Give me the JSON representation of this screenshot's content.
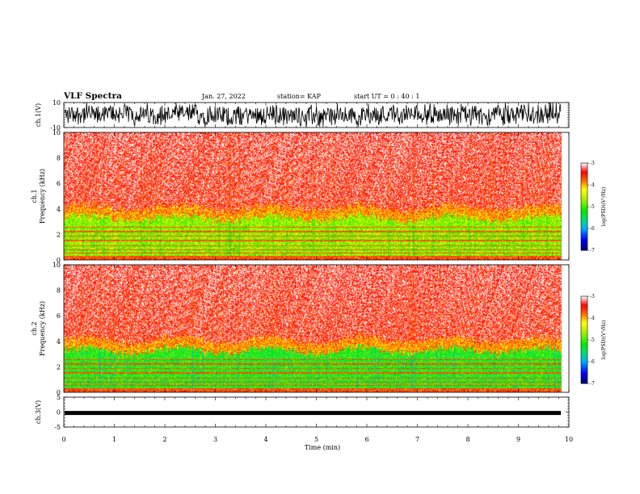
{
  "header": {
    "title": "VLF Spectra",
    "date": "Jan. 27, 2022",
    "station": "station= KAP",
    "start": "start  UT  =   0 : 40 : 1"
  },
  "chart_data": [
    {
      "type": "line",
      "panel": "ch1-waveform",
      "ylabel": "ch.1(V)",
      "ylim": [
        -10,
        10
      ],
      "y_tick_labels": [
        "10",
        "-10"
      ],
      "xlim": [
        0,
        10
      ],
      "data_extent_min": 9.84
    },
    {
      "type": "heatmap",
      "panel": "ch1-spectrogram",
      "ylabel": "ch.1\nFrequency (kHz)",
      "ylim": [
        0,
        10
      ],
      "y_tick_labels": [
        "0",
        "2",
        "4",
        "6",
        "8",
        "10"
      ],
      "xlim": [
        0,
        10
      ],
      "colorbar": {
        "range": [
          -7,
          -3
        ],
        "ticks": [
          "-3",
          "-4",
          "-5",
          "-6",
          "-7"
        ],
        "label": "log(PSD)(V²/Hz)"
      }
    },
    {
      "type": "heatmap",
      "panel": "ch2-spectrogram",
      "ylabel": "ch.2\nFrequency (kHz)",
      "ylim": [
        0,
        10
      ],
      "y_tick_labels": [
        "0",
        "2",
        "4",
        "6",
        "8",
        "10"
      ],
      "xlim": [
        0,
        10
      ],
      "colorbar": {
        "range": [
          -7,
          -3
        ],
        "ticks": [
          "-3",
          "-4",
          "-5",
          "-6",
          "-7"
        ],
        "label": "log(PSD)(V²/Hz)"
      }
    },
    {
      "type": "line",
      "panel": "ch3-waveform",
      "ylabel": "ch.3(V)",
      "ylim": [
        -5,
        5
      ],
      "y_tick_labels": [
        "5",
        "0",
        "-5"
      ],
      "xlim": [
        0,
        10
      ],
      "value_approx": -0.3
    }
  ],
  "xaxis": {
    "label": "Time (min)",
    "tick_labels": [
      "0",
      "1",
      "2",
      "3",
      "4",
      "5",
      "6",
      "7",
      "8",
      "9",
      "10"
    ]
  },
  "colors": {
    "low": "#000080",
    "mid": "#00dd00",
    "high_mid": "#ffff00",
    "high": "#ff0000",
    "line": "#000000"
  }
}
